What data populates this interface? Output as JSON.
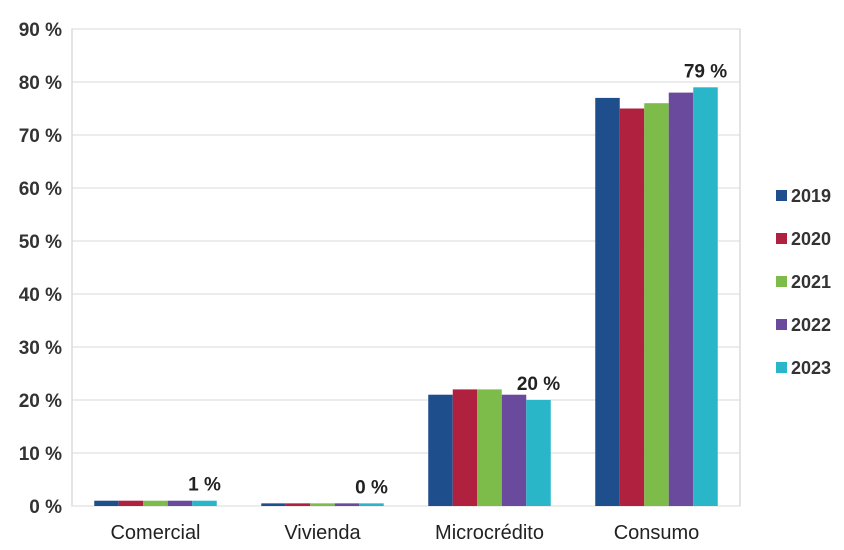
{
  "chart_data": {
    "type": "bar",
    "categories": [
      "Comercial",
      "Vivienda",
      "Microcrédito",
      "Consumo"
    ],
    "series": [
      {
        "name": "2019",
        "color": "#1f4e8c",
        "values": [
          1,
          0.5,
          21,
          77
        ]
      },
      {
        "name": "2020",
        "color": "#b0203f",
        "values": [
          1,
          0.5,
          22,
          75
        ]
      },
      {
        "name": "2021",
        "color": "#7dbb4a",
        "values": [
          1,
          0.5,
          22,
          76
        ]
      },
      {
        "name": "2022",
        "color": "#6a4a9c",
        "values": [
          1,
          0.5,
          21,
          78
        ]
      },
      {
        "name": "2023",
        "color": "#29b6c9",
        "values": [
          1,
          0.5,
          20,
          79
        ]
      }
    ],
    "y_tick_labels": [
      "0 %",
      "10 %",
      "20 %",
      "30 %",
      "40 %",
      "50 %",
      "60 %",
      "70 %",
      "80 %",
      "90 %"
    ],
    "ylim": [
      0,
      90
    ],
    "data_labels": [
      "1 %",
      "0 %",
      "20 %",
      "79 %"
    ],
    "legend_position": "right",
    "grid": true
  }
}
